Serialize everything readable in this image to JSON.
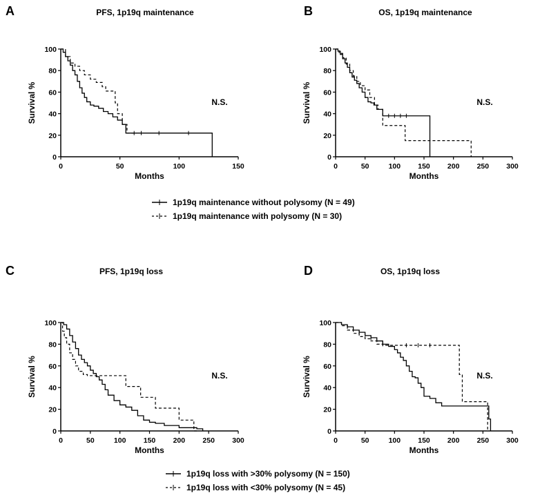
{
  "legends": [
    {
      "entries": [
        {
          "label": "1p19q maintenance without polysomy (N = 49)",
          "style": "solid"
        },
        {
          "label": "1p19q maintenance with polysomy (N = 30)",
          "style": "dashed"
        }
      ]
    },
    {
      "entries": [
        {
          "label": "1p19q loss with >30% polysomy (N = 150)",
          "style": "solid"
        },
        {
          "label": "1p19q loss with <30% polysomy (N = 45)",
          "style": "dashed"
        }
      ]
    }
  ],
  "chart_data": [
    {
      "type": "line",
      "letter": "A",
      "title": "PFS, 1p19q maintenance",
      "xlabel": "Months",
      "ylabel": "Survival %",
      "xlim": [
        0,
        150
      ],
      "ylim": [
        0,
        100
      ],
      "xticks": [
        0,
        50,
        100,
        150
      ],
      "yticks": [
        0,
        20,
        40,
        60,
        80,
        100
      ],
      "annotation": "N.S.",
      "series": [
        {
          "name": "1p19q maintenance without polysomy (N = 49)",
          "style": "solid",
          "x": [
            0,
            2,
            4,
            6,
            8,
            10,
            12,
            14,
            16,
            18,
            20,
            22,
            25,
            28,
            32,
            36,
            40,
            44,
            48,
            52,
            55,
            128,
            128
          ],
          "y": [
            100,
            97,
            93,
            89,
            85,
            80,
            76,
            70,
            64,
            59,
            55,
            51,
            48,
            47,
            45,
            42,
            40,
            37,
            34,
            30,
            22,
            22,
            0
          ],
          "censor_x": [
            62,
            68,
            83,
            108
          ]
        },
        {
          "name": "1p19q maintenance with polysomy (N = 30)",
          "style": "dashed",
          "x": [
            0,
            4,
            8,
            12,
            16,
            20,
            25,
            30,
            35,
            38,
            46,
            48,
            52,
            56,
            64
          ],
          "y": [
            100,
            93,
            87,
            84,
            80,
            76,
            72,
            69,
            65,
            61,
            50,
            40,
            30,
            22,
            22
          ],
          "censor_x": []
        }
      ]
    },
    {
      "type": "line",
      "letter": "B",
      "title": "OS, 1p19q maintenance",
      "xlabel": "Months",
      "ylabel": "Survival %",
      "xlim": [
        0,
        300
      ],
      "ylim": [
        0,
        100
      ],
      "xticks": [
        0,
        50,
        100,
        150,
        200,
        250,
        300
      ],
      "yticks": [
        0,
        20,
        40,
        60,
        80,
        100
      ],
      "annotation": "N.S.",
      "series": [
        {
          "name": "1p19q maintenance without polysomy (N = 49)",
          "style": "solid",
          "x": [
            0,
            4,
            8,
            12,
            16,
            20,
            24,
            28,
            32,
            36,
            40,
            45,
            50,
            55,
            60,
            65,
            70,
            80,
            160,
            160
          ],
          "y": [
            100,
            98,
            95,
            91,
            87,
            83,
            78,
            74,
            71,
            68,
            64,
            60,
            55,
            51,
            50,
            48,
            44,
            38,
            38,
            0
          ],
          "censor_x": [
            90,
            100,
            110,
            120
          ]
        },
        {
          "name": "1p19q maintenance with polysomy (N = 30)",
          "style": "dashed",
          "x": [
            0,
            6,
            12,
            18,
            24,
            30,
            36,
            42,
            50,
            58,
            66,
            72,
            80,
            118,
            230,
            230
          ],
          "y": [
            100,
            96,
            92,
            86,
            80,
            75,
            70,
            66,
            62,
            55,
            48,
            44,
            29,
            15,
            15,
            0
          ],
          "censor_x": []
        }
      ]
    },
    {
      "type": "line",
      "letter": "C",
      "title": "PFS, 1p19q loss",
      "xlabel": "Months",
      "ylabel": "Survival %",
      "xlim": [
        0,
        300
      ],
      "ylim": [
        0,
        100
      ],
      "xticks": [
        0,
        50,
        100,
        150,
        200,
        250,
        300
      ],
      "yticks": [
        0,
        20,
        40,
        60,
        80,
        100
      ],
      "annotation": "N.S.",
      "series": [
        {
          "name": "1p19q loss with >30% polysomy (N = 150)",
          "style": "solid",
          "x": [
            0,
            5,
            10,
            15,
            20,
            25,
            30,
            35,
            40,
            45,
            50,
            55,
            60,
            65,
            70,
            75,
            80,
            90,
            100,
            110,
            120,
            130,
            140,
            150,
            160,
            175,
            200,
            230,
            240
          ],
          "y": [
            100,
            98,
            94,
            88,
            82,
            76,
            70,
            66,
            63,
            60,
            56,
            53,
            50,
            47,
            43,
            38,
            33,
            28,
            24,
            22,
            19,
            14,
            10,
            8,
            7,
            5,
            3,
            2,
            0
          ],
          "censor_x": []
        },
        {
          "name": "1p19q loss with <30% polysomy (N = 45)",
          "style": "dashed",
          "x": [
            0,
            3,
            6,
            10,
            15,
            20,
            25,
            30,
            38,
            45,
            95,
            110,
            135,
            160,
            200,
            225,
            230
          ],
          "y": [
            100,
            92,
            86,
            80,
            72,
            66,
            60,
            55,
            52,
            51,
            51,
            41,
            31,
            21,
            10,
            0,
            0
          ],
          "censor_x": []
        }
      ]
    },
    {
      "type": "line",
      "letter": "D",
      "title": "OS, 1p19q loss",
      "xlabel": "Months",
      "ylabel": "Survival %",
      "xlim": [
        0,
        300
      ],
      "ylim": [
        0,
        100
      ],
      "xticks": [
        0,
        50,
        100,
        150,
        200,
        250,
        300
      ],
      "yticks": [
        0,
        20,
        40,
        60,
        80,
        100
      ],
      "annotation": "N.S.",
      "series": [
        {
          "name": "1p19q loss with >30% polysomy (N = 150)",
          "style": "solid",
          "x": [
            0,
            10,
            20,
            30,
            40,
            50,
            60,
            70,
            80,
            90,
            100,
            105,
            110,
            115,
            120,
            125,
            130,
            135,
            140,
            145,
            150,
            160,
            170,
            180,
            255,
            260,
            263,
            263
          ],
          "y": [
            100,
            98,
            96,
            93,
            91,
            88,
            86,
            83,
            80,
            78,
            75,
            72,
            68,
            65,
            60,
            55,
            50,
            49,
            44,
            40,
            32,
            30,
            26,
            23,
            23,
            11,
            11,
            0
          ],
          "censor_x": [
            20,
            40,
            60,
            80
          ]
        },
        {
          "name": "1p19q loss with <30% polysomy (N = 45)",
          "style": "dashed",
          "x": [
            0,
            10,
            20,
            30,
            40,
            50,
            60,
            70,
            80,
            205,
            210,
            215,
            255,
            258
          ],
          "y": [
            100,
            97,
            93,
            90,
            87,
            85,
            83,
            80,
            79,
            79,
            52,
            27,
            27,
            0
          ],
          "censor_x": [
            120,
            140,
            160
          ]
        }
      ]
    }
  ]
}
